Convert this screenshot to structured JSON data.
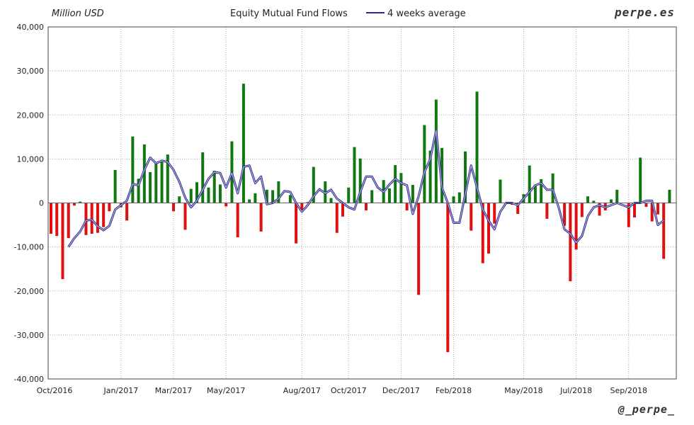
{
  "header": {
    "unit": "Million USD",
    "title": "Equity Mutual Fund Flows",
    "legend_label": "4 weeks average",
    "brand": "perpe.es"
  },
  "footer": {
    "handle": "@_perpe_"
  },
  "colors": {
    "positive": "#117711",
    "negative": "#dd1111",
    "average_line": "#2a2a8a",
    "grid": "#aaaaaa"
  },
  "chart_data": {
    "type": "bar",
    "title": "Equity Mutual Fund Flows",
    "ylabel": "Million USD",
    "ylim": [
      -40000,
      40000
    ],
    "y_ticks": [
      -40000,
      -30000,
      -20000,
      -10000,
      0,
      10000,
      20000,
      30000,
      40000
    ],
    "y_tick_labels": [
      "-40,000",
      "-30,000",
      "-20,000",
      "-10,000",
      "0",
      "10,000",
      "20,000",
      "30,000",
      "40,000"
    ],
    "x_tick_labels": [
      {
        "label": "Oct/2016",
        "week": 0
      },
      {
        "label": "Jan/2017",
        "week": 12
      },
      {
        "label": "Mar/2017",
        "week": 21
      },
      {
        "label": "May/2017",
        "week": 30
      },
      {
        "label": "Aug/2017",
        "week": 43
      },
      {
        "label": "Oct/2017",
        "week": 51
      },
      {
        "label": "Dec/2017",
        "week": 60
      },
      {
        "label": "Feb/2018",
        "week": 69
      },
      {
        "label": "May/2018",
        "week": 81
      },
      {
        "label": "Jul/2018",
        "week": 90
      },
      {
        "label": "Sep/2018",
        "week": 99
      }
    ],
    "grid": true,
    "legend": "top-center",
    "series": [
      {
        "name": "Equity Mutual Fund Flows",
        "type": "bar",
        "values": [
          -7000,
          -7500,
          -17300,
          -8000,
          -600,
          300,
          -7300,
          -7000,
          -6800,
          -5500,
          -1900,
          7500,
          -1000,
          -4000,
          15100,
          5500,
          13300,
          7000,
          9000,
          9300,
          11000,
          -1900,
          1500,
          -6100,
          3200,
          4700,
          11500,
          3500,
          7300,
          4200,
          -800,
          14000,
          -7800,
          27100,
          800,
          2200,
          -6500,
          3000,
          2900,
          4900,
          100,
          1800,
          -9200,
          -1800,
          200,
          8200,
          0,
          4900,
          1100,
          -6800,
          -3100,
          3500,
          12700,
          10100,
          -1700,
          2900,
          100,
          5200,
          3300,
          8600,
          6800,
          -1700,
          4100,
          -20900,
          17700,
          11900,
          23500,
          12500,
          -33900,
          1500,
          2400,
          11700,
          -6300,
          25300,
          -13700,
          -11500,
          -4700,
          5300,
          0,
          -400,
          -2500,
          2000,
          8500,
          3900,
          5400,
          -3600,
          6700,
          0,
          -5200,
          -17800,
          -10600,
          -3200,
          1500,
          500,
          -2900,
          -1700,
          800,
          3000,
          0,
          -5500,
          -3300,
          10300,
          -900,
          -4200,
          -2600,
          -12700,
          3000
        ]
      },
      {
        "name": "4 weeks average",
        "type": "line",
        "start_week": 3,
        "values": [
          -10000,
          -8000,
          -6500,
          -4000,
          -3800,
          -5300,
          -6200,
          -5200,
          -1500,
          -500,
          500,
          4300,
          4000,
          7500,
          10300,
          9000,
          9600,
          9300,
          7500,
          4800,
          1200,
          -1000,
          500,
          3000,
          5500,
          7000,
          6800,
          3500,
          6800,
          2200,
          8200,
          8500,
          4500,
          6000,
          -300,
          0,
          1000,
          2700,
          2500,
          0,
          -2000,
          -500,
          1500,
          3100,
          2200,
          3000,
          1000,
          0,
          -1000,
          -1500,
          2500,
          6000,
          6000,
          3500,
          2500,
          4200,
          5500,
          4500,
          4000,
          -2500,
          1500,
          7000,
          10000,
          16500,
          3500,
          0,
          -4500,
          -4500,
          2000,
          8500,
          3500,
          -1500,
          -4000,
          -6000,
          -2000,
          0,
          0,
          -500,
          1000,
          2500,
          4000,
          4500,
          3000,
          3000,
          -1000,
          -6000,
          -7000,
          -9000,
          -7500,
          -3000,
          -1000,
          -500,
          -1000,
          -500,
          0,
          -500,
          -1000,
          0,
          0,
          500,
          500,
          -5000,
          -4000
        ]
      }
    ]
  }
}
